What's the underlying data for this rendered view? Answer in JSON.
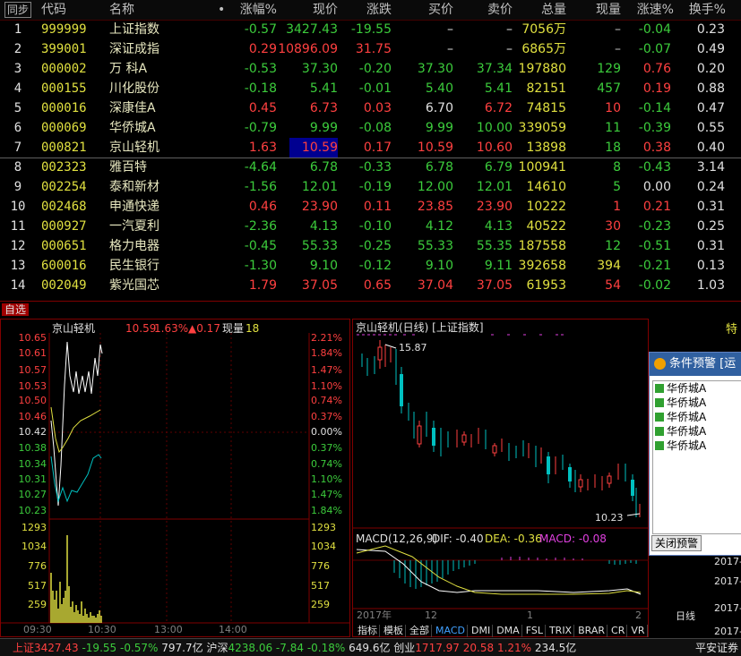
{
  "table": {
    "headers": [
      "同步",
      "代码",
      "名称",
      "•",
      "涨幅%",
      "现价",
      "涨跌",
      "买价",
      "卖价",
      "总量",
      "现量",
      "涨速%",
      "换手%"
    ],
    "rows": [
      [
        "1",
        "999999",
        "上证指数",
        "-0.57",
        "3427.43",
        "-19.55",
        "–",
        "–",
        "7056万",
        "–",
        "-0.04",
        "0.23"
      ],
      [
        "2",
        "399001",
        "深证成指",
        "0.29",
        "10896.09",
        "31.75",
        "–",
        "–",
        "6865万",
        "–",
        "-0.07",
        "0.49"
      ],
      [
        "3",
        "000002",
        "万 科A",
        "-0.53",
        "37.30",
        "-0.20",
        "37.30",
        "37.34",
        "197880",
        "129",
        "0.76",
        "0.20"
      ],
      [
        "4",
        "000155",
        "川化股份",
        "-0.18",
        "5.41",
        "-0.01",
        "5.40",
        "5.41",
        "82151",
        "457",
        "0.19",
        "0.88"
      ],
      [
        "5",
        "000016",
        "深康佳A",
        "0.45",
        "6.73",
        "0.03",
        "6.70",
        "6.72",
        "74815",
        "10",
        "-0.14",
        "0.47"
      ],
      [
        "6",
        "000069",
        "华侨城A",
        "-0.79",
        "9.99",
        "-0.08",
        "9.99",
        "10.00",
        "339059",
        "11",
        "-0.39",
        "0.55"
      ],
      [
        "7",
        "000821",
        "京山轻机",
        "1.63",
        "10.59",
        "0.17",
        "10.59",
        "10.60",
        "13898",
        "18",
        "0.38",
        "0.40"
      ],
      [
        "8",
        "002323",
        "雅百特",
        "-4.64",
        "6.78",
        "-0.33",
        "6.78",
        "6.79",
        "100941",
        "8",
        "-0.43",
        "3.14"
      ],
      [
        "9",
        "002254",
        "泰和新材",
        "-1.56",
        "12.01",
        "-0.19",
        "12.00",
        "12.01",
        "14610",
        "5",
        "0.00",
        "0.24"
      ],
      [
        "10",
        "002468",
        "申通快递",
        "0.46",
        "23.90",
        "0.11",
        "23.85",
        "23.90",
        "10222",
        "1",
        "0.21",
        "0.31"
      ],
      [
        "11",
        "000927",
        "一汽夏利",
        "-2.36",
        "4.13",
        "-0.10",
        "4.12",
        "4.13",
        "40522",
        "30",
        "-0.23",
        "0.25"
      ],
      [
        "12",
        "000651",
        "格力电器",
        "-0.45",
        "55.33",
        "-0.25",
        "55.33",
        "55.35",
        "187558",
        "12",
        "-0.51",
        "0.31"
      ],
      [
        "13",
        "600016",
        "民生银行",
        "-1.30",
        "9.10",
        "-0.12",
        "9.10",
        "9.11",
        "392658",
        "394",
        "-0.21",
        "0.13"
      ],
      [
        "14",
        "002049",
        "紫光国芯",
        "1.79",
        "37.05",
        "0.65",
        "37.04",
        "37.05",
        "61953",
        "54",
        "-0.02",
        "1.03"
      ]
    ],
    "qty_colors": [
      "#c0c0c0",
      "#c0c0c0",
      "#3ccc3c",
      "#3ccc3c",
      "#ff4040",
      "#3ccc3c",
      "#3ccc3c",
      "#3ccc3c",
      "#3ccc3c",
      "#ff4040",
      "#ff4040",
      "#3ccc3c",
      "#e0e040",
      "#ff4040"
    ]
  },
  "tab": "自选",
  "intraday": {
    "name": "京山轻机",
    "price": "10.59",
    "pct": "1.63%",
    "chg": "▲0.17",
    "qty_label": "现量",
    "qty": "18",
    "left_labels": [
      "10.65",
      "10.61",
      "10.57",
      "10.53",
      "10.50",
      "10.46",
      "10.42",
      "10.38",
      "10.34",
      "10.31",
      "10.27",
      "10.23"
    ],
    "right_labels": [
      "2.21%",
      "1.84%",
      "1.47%",
      "1.10%",
      "0.74%",
      "0.37%",
      "0.00%",
      "0.37%",
      "0.74%",
      "1.10%",
      "1.47%",
      "1.84%"
    ],
    "vol_labels": [
      "1293",
      "1034",
      "776",
      "517",
      "259"
    ],
    "times": [
      "09:30",
      "10:30",
      "13:00",
      "14:00"
    ]
  },
  "daily": {
    "title": "京山轻机(日线) [上证指数]",
    "high": "15.87",
    "low": "10.23",
    "macd": [
      "MACD(12,26,9)",
      "DIF: -0.40",
      "DEA: -0.36",
      "MACD: -0.08"
    ],
    "dates": [
      "2017年",
      "12",
      "1",
      "2"
    ],
    "tabs": [
      "指标",
      "模板",
      "全部",
      "MACD",
      "DMI",
      "DMA",
      "FSL",
      "TRIX",
      "BRAR",
      "CR",
      "VR"
    ]
  },
  "popup": {
    "title": "条件预警 [运",
    "items": [
      "华侨城A",
      "华侨城A",
      "华侨城A",
      "华侨城A",
      "华侨城A"
    ],
    "button": "关闭预警"
  },
  "side": {
    "tab": "特",
    "dates": [
      "2017-",
      "2017-",
      "2017-",
      "2017-"
    ],
    "period": "日线"
  },
  "status": [
    "上证",
    "3427.43",
    "-19.55",
    "-0.57%",
    "797.7亿",
    "沪深",
    "4238.06",
    "-7.84",
    "-0.18%",
    "649.6亿",
    "创业",
    "1717.97",
    "20.58",
    "1.21%",
    "234.5亿",
    "平安证券"
  ]
}
